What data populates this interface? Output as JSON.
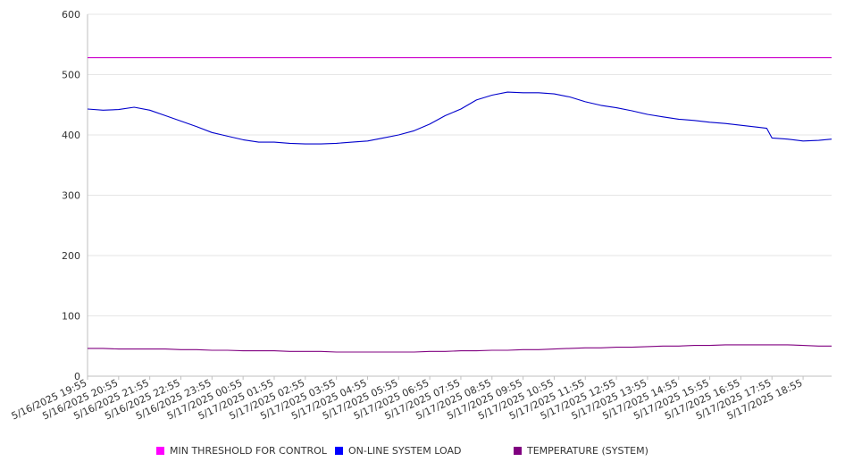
{
  "chart_data": {
    "type": "line",
    "title": "",
    "xlabel": "",
    "ylabel": "",
    "ylim": [
      0,
      600
    ],
    "yticks": [
      "0",
      "100",
      "200",
      "300",
      "400",
      "500",
      "600"
    ],
    "x_tick_labels": [
      "5/16/2025 19:55",
      "5/16/2025 20:55",
      "5/16/2025 21:55",
      "5/16/2025 22:55",
      "5/16/2025 23:55",
      "5/17/2025 00:55",
      "5/17/2025 01:55",
      "5/17/2025 02:55",
      "5/17/2025 03:55",
      "5/17/2025 04:55",
      "5/17/2025 05:55",
      "5/17/2025 06:55",
      "5/17/2025 07:55",
      "5/17/2025 08:55",
      "5/17/2025 09:55",
      "5/17/2025 10:55",
      "5/17/2025 11:55",
      "5/17/2025 12:55",
      "5/17/2025 13:55",
      "5/17/2025 14:55",
      "5/17/2025 15:55",
      "5/17/2025 16:55",
      "5/17/2025 17:55",
      "5/17/2025 18:55"
    ],
    "x": [
      "5/16/2025 19:55",
      "5/16/2025 20:25",
      "5/16/2025 20:55",
      "5/16/2025 21:25",
      "5/16/2025 21:55",
      "5/16/2025 22:25",
      "5/16/2025 22:55",
      "5/16/2025 23:25",
      "5/16/2025 23:55",
      "5/17/2025 00:25",
      "5/17/2025 00:55",
      "5/17/2025 01:25",
      "5/17/2025 01:55",
      "5/17/2025 02:25",
      "5/17/2025 02:55",
      "5/17/2025 03:25",
      "5/17/2025 03:55",
      "5/17/2025 04:25",
      "5/17/2025 04:55",
      "5/17/2025 05:25",
      "5/17/2025 05:55",
      "5/17/2025 06:25",
      "5/17/2025 06:55",
      "5/17/2025 07:25",
      "5/17/2025 07:55",
      "5/17/2025 08:25",
      "5/17/2025 08:55",
      "5/17/2025 09:25",
      "5/17/2025 09:55",
      "5/17/2025 10:25",
      "5/17/2025 10:55",
      "5/17/2025 11:25",
      "5/17/2025 11:55",
      "5/17/2025 12:25",
      "5/17/2025 12:55",
      "5/17/2025 13:25",
      "5/17/2025 13:55",
      "5/17/2025 14:25",
      "5/17/2025 14:55",
      "5/17/2025 15:25",
      "5/17/2025 15:55",
      "5/17/2025 16:25",
      "5/17/2025 16:55",
      "5/17/2025 17:25",
      "5/17/2025 17:45",
      "5/17/2025 17:55",
      "5/17/2025 18:25",
      "5/17/2025 18:55",
      "5/17/2025 19:25",
      "5/17/2025 19:50"
    ],
    "series": [
      {
        "name": "MIN THRESHOLD FOR CONTROL",
        "color": "#cc00cc",
        "values": [
          528,
          528,
          528,
          528,
          528,
          528,
          528,
          528,
          528,
          528,
          528,
          528,
          528,
          528,
          528,
          528,
          528,
          528,
          528,
          528,
          528,
          528,
          528,
          528,
          528,
          528,
          528,
          528,
          528,
          528,
          528,
          528,
          528,
          528,
          528,
          528,
          528,
          528,
          528,
          528,
          528,
          528,
          528,
          528,
          528,
          528,
          528,
          528,
          528,
          528
        ]
      },
      {
        "name": "ON-LINE SYSTEM LOAD",
        "color": "#0000cc",
        "values": [
          443,
          441,
          442,
          446,
          441,
          432,
          423,
          414,
          404,
          398,
          392,
          388,
          388,
          386,
          385,
          385,
          386,
          388,
          390,
          395,
          400,
          407,
          418,
          432,
          443,
          458,
          466,
          471,
          470,
          470,
          468,
          463,
          455,
          449,
          445,
          440,
          434,
          430,
          426,
          424,
          421,
          419,
          416,
          413,
          411,
          395,
          393,
          390,
          391,
          393
        ]
      },
      {
        "name": "TEMPERATURE (SYSTEM)",
        "color": "#800080",
        "values": [
          46,
          46,
          45,
          45,
          45,
          45,
          44,
          44,
          43,
          43,
          42,
          42,
          42,
          41,
          41,
          41,
          40,
          40,
          40,
          40,
          40,
          40,
          41,
          41,
          42,
          42,
          43,
          43,
          44,
          44,
          45,
          46,
          47,
          47,
          48,
          48,
          49,
          50,
          50,
          51,
          51,
          52,
          52,
          52,
          52,
          52,
          52,
          51,
          50,
          50
        ]
      }
    ],
    "legend_position": "bottom",
    "grid": true
  }
}
